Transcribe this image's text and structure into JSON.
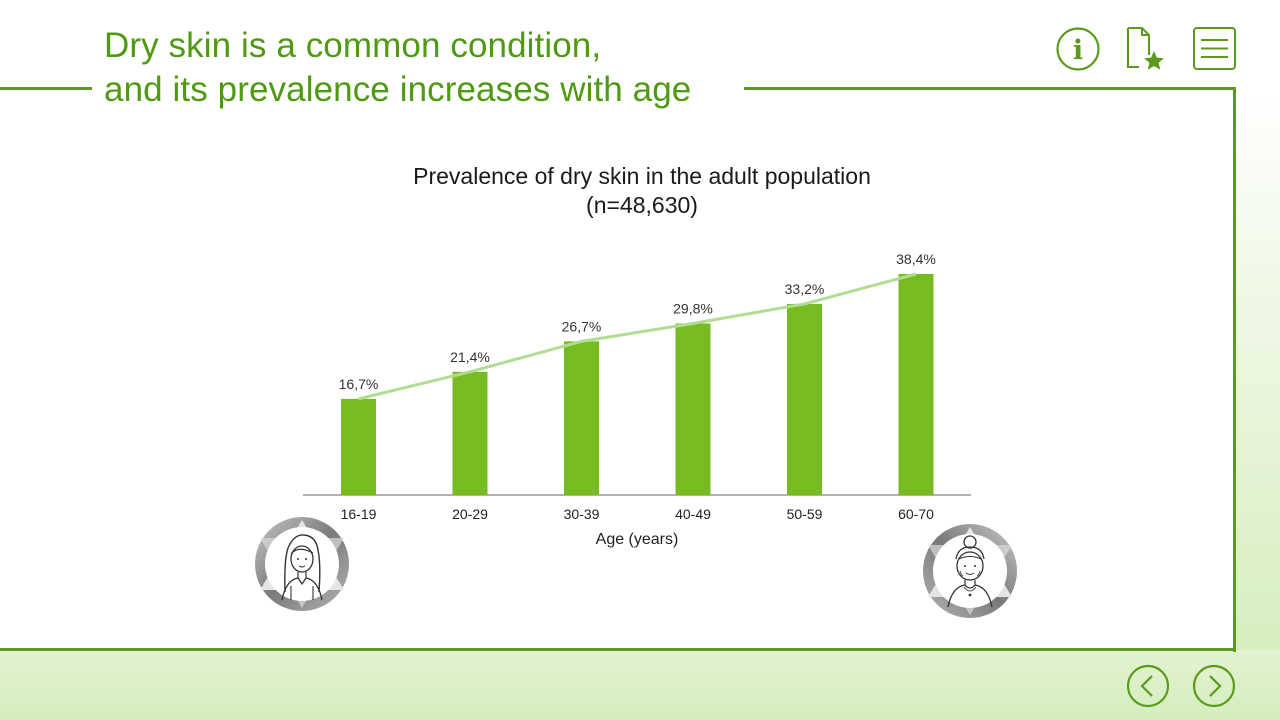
{
  "slide": {
    "title": "Dry skin is a common condition,\nand its prevalence increases with age"
  },
  "toolbar": {
    "info_icon": "info-icon",
    "favorite_icon": "document-star-icon",
    "menu_icon": "menu-icon"
  },
  "navigation": {
    "prev_icon": "chevron-left-icon",
    "next_icon": "chevron-right-icon"
  },
  "colors": {
    "accent": "#5a9a1c",
    "bar": "#77bb22",
    "trend": "#b0dd92",
    "title": "#4f9a12"
  },
  "chart_data": {
    "type": "bar",
    "title": "Prevalence of dry skin in the adult population",
    "subtitle": "(n=48,630)",
    "xlabel": "Age (years)",
    "ylabel": "",
    "categories": [
      "16-19",
      "20-29",
      "30-39",
      "40-49",
      "50-59",
      "60-70"
    ],
    "values": [
      16.7,
      21.4,
      26.7,
      29.8,
      33.2,
      38.4
    ],
    "data_labels": [
      "16,7%",
      "21,4%",
      "26,7%",
      "29,8%",
      "33,2%",
      "38,4%"
    ],
    "ylim": [
      0,
      38.4
    ],
    "trend_line": true,
    "grid": false
  },
  "illustrations": {
    "young": "young-woman-portrait",
    "old": "elderly-woman-portrait"
  }
}
